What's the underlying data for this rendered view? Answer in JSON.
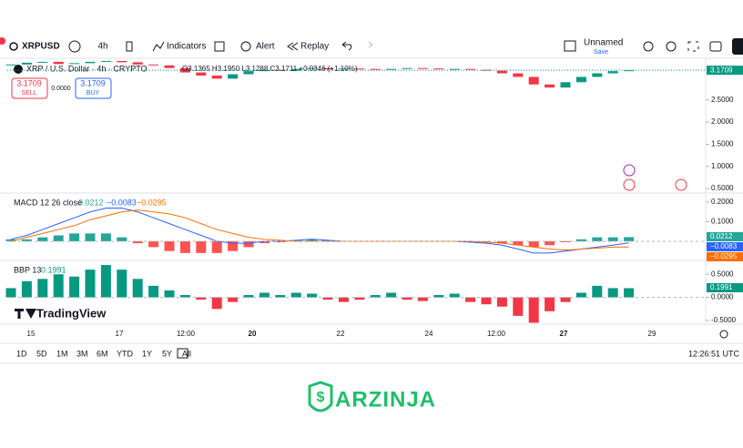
{
  "toolbar": {
    "symbol": "XRPUSD",
    "interval": "4h",
    "indicators": "Indicators",
    "alert": "Alert",
    "replay": "Replay",
    "layout_name": "Unnamed",
    "save": "Save"
  },
  "legend": {
    "title": "XRP / U.S. Dollar · 4h · CRYPTO",
    "ohlc": "O3.1365 H3.1950 L3.1288 C3.1711 +0.0346 (+1.10%)",
    "sell_price": "3.1709",
    "sell": "SELL",
    "spread": "0.0000",
    "buy_price": "3.1709",
    "buy": "BUY"
  },
  "chart_data": [
    {
      "type": "candlestick",
      "currency": "USD",
      "last_price_label": "3.1709",
      "open": [
        3.28,
        3.3,
        3.34,
        3.36,
        3.31,
        3.33,
        3.36,
        3.38,
        3.35,
        3.3,
        3.28,
        3.22,
        3.12,
        3.05,
        2.98,
        3.08,
        3.15,
        3.18,
        3.16,
        3.2,
        3.22,
        3.19,
        3.21,
        3.2,
        3.18,
        3.2,
        3.22,
        3.21,
        3.19,
        3.2,
        3.18,
        3.16,
        3.1,
        3.02,
        2.85,
        2.78,
        2.9,
        3.02,
        3.1,
        3.15
      ],
      "close": [
        3.3,
        3.34,
        3.36,
        3.31,
        3.33,
        3.36,
        3.38,
        3.35,
        3.3,
        3.28,
        3.22,
        3.12,
        3.05,
        2.98,
        3.08,
        3.15,
        3.18,
        3.16,
        3.2,
        3.22,
        3.19,
        3.21,
        3.2,
        3.18,
        3.2,
        3.22,
        3.21,
        3.19,
        3.2,
        3.18,
        3.16,
        3.1,
        3.02,
        2.85,
        2.78,
        2.9,
        3.02,
        3.1,
        3.15,
        3.17
      ],
      "up_color": "#089981",
      "down_color": "#f23645",
      "ylim": [
        0.4,
        3.44
      ],
      "yticks": [
        {
          "value": 2.5,
          "label": "2.5000"
        },
        {
          "value": 2,
          "label": "2.0000"
        },
        {
          "value": 1.5,
          "label": "1.5000"
        },
        {
          "value": 1,
          "label": "1.0000"
        },
        {
          "value": 0.5,
          "label": "0.5000"
        }
      ]
    },
    {
      "type": "macd",
      "title": "MACD 12 26 close",
      "legend_values": [
        "0.0212",
        "−0.0083",
        "−0.0295"
      ],
      "histogram": [
        0.01,
        0.01,
        0.02,
        0.03,
        0.04,
        0.04,
        0.04,
        0.02,
        -0.01,
        -0.03,
        -0.05,
        -0.06,
        -0.06,
        -0.06,
        -0.05,
        -0.03,
        -0.01,
        -0.005,
        0.005,
        0.01,
        0.005,
        0.0,
        0.0,
        0.0,
        0.0,
        0.0,
        0.0,
        0.0,
        0.0,
        -0.005,
        -0.005,
        -0.01,
        -0.02,
        -0.03,
        -0.02,
        -0.005,
        0.01,
        0.02,
        0.02,
        0.0212
      ],
      "macd": [
        0.01,
        0.03,
        0.06,
        0.09,
        0.12,
        0.15,
        0.17,
        0.17,
        0.15,
        0.12,
        0.09,
        0.06,
        0.03,
        0.0,
        -0.01,
        -0.01,
        0.0,
        0.0,
        0.005,
        0.01,
        0.005,
        0.0,
        0.0,
        0.0,
        0.0,
        0.0,
        0.0,
        0.0,
        0.0,
        -0.005,
        -0.01,
        -0.02,
        -0.04,
        -0.06,
        -0.06,
        -0.05,
        -0.04,
        -0.03,
        -0.02,
        -0.0083
      ],
      "signal": [
        0.0,
        0.02,
        0.04,
        0.06,
        0.08,
        0.11,
        0.13,
        0.15,
        0.16,
        0.15,
        0.14,
        0.12,
        0.09,
        0.06,
        0.04,
        0.02,
        0.01,
        0.005,
        0.0,
        0.0,
        0.0,
        0.0,
        0.0,
        0.0,
        0.0,
        0.0,
        0.0,
        0.0,
        0.0,
        0.0,
        -0.005,
        -0.01,
        -0.02,
        -0.03,
        -0.04,
        -0.045,
        -0.04,
        -0.035,
        -0.03,
        -0.0295
      ],
      "hist_up_color": "#26a69a",
      "hist_down_color": "#ff5252",
      "macd_color": "#2962ff",
      "signal_color": "#ff6d00",
      "ylim": [
        -0.098,
        0.242
      ],
      "yticks": [
        {
          "value": 0.2,
          "label": "0.2000"
        },
        {
          "value": 0.1,
          "label": "0.1000"
        }
      ]
    },
    {
      "type": "bbp",
      "title": "BBP 13",
      "legend_value": "0.1991",
      "values": [
        0.2,
        0.35,
        0.4,
        0.5,
        0.45,
        0.6,
        0.7,
        0.6,
        0.4,
        0.25,
        0.15,
        0.05,
        -0.05,
        -0.25,
        -0.1,
        0.05,
        0.1,
        0.05,
        0.1,
        0.08,
        -0.05,
        -0.1,
        -0.05,
        0.05,
        0.1,
        -0.05,
        -0.08,
        0.05,
        0.08,
        -0.1,
        -0.15,
        -0.2,
        -0.4,
        -0.55,
        -0.3,
        -0.1,
        0.1,
        0.25,
        0.2,
        0.1991
      ],
      "up_color": "#089981",
      "down_color": "#f23645",
      "ylim": [
        -0.58,
        0.78
      ],
      "yticks": [
        {
          "value": 0.5,
          "label": "0.5000"
        },
        {
          "value": 0,
          "label": "0.0000"
        },
        {
          "value": -0.5,
          "label": "-0.5000"
        }
      ]
    }
  ],
  "time_axis": {
    "labels": [
      "15",
      "17",
      "12:00",
      "20",
      "22",
      "24",
      "12:00",
      "27",
      "29"
    ]
  },
  "bottom_bar": {
    "ranges": [
      "1D",
      "5D",
      "1M",
      "3M",
      "6M",
      "YTD",
      "1Y",
      "5Y",
      "All"
    ],
    "clock": "12:26:51 UTC"
  },
  "brand": {
    "tradingview": "TradingView",
    "footer": "ARZINJA"
  }
}
